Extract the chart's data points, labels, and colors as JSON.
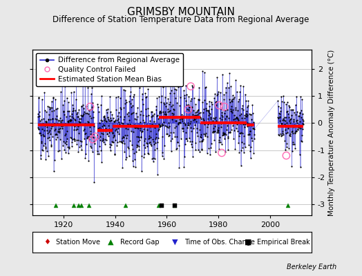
{
  "title": "GRIMSBY MOUNTAIN",
  "subtitle": "Difference of Station Temperature Data from Regional Average",
  "ylabel": "Monthly Temperature Anomaly Difference (°C)",
  "xlabel_ticks": [
    1920,
    1940,
    1960,
    1980,
    2000
  ],
  "ylim": [
    -3.4,
    2.7
  ],
  "xlim": [
    1908,
    2016
  ],
  "background_color": "#e8e8e8",
  "plot_bg_color": "#ffffff",
  "grid_color": "#c8c8c8",
  "seed": 42,
  "segments": [
    {
      "start": 1910,
      "end": 1931,
      "bias": -0.08,
      "spread": 0.65
    },
    {
      "start": 1933,
      "end": 1938,
      "bias": -0.28,
      "spread": 0.6
    },
    {
      "start": 1939,
      "end": 1956,
      "bias": -0.12,
      "spread": 0.72
    },
    {
      "start": 1957,
      "end": 1972,
      "bias": 0.18,
      "spread": 0.68
    },
    {
      "start": 1973,
      "end": 1990,
      "bias": 0.02,
      "spread": 0.72
    },
    {
      "start": 1991,
      "end": 1993,
      "bias": -0.08,
      "spread": 0.5
    },
    {
      "start": 2003,
      "end": 2012,
      "bias": -0.12,
      "spread": 0.52
    }
  ],
  "bias_segments": [
    {
      "start": 1910,
      "end": 1931,
      "bias": -0.08
    },
    {
      "start": 1933,
      "end": 1938,
      "bias": -0.28
    },
    {
      "start": 1939,
      "end": 1956,
      "bias": -0.12
    },
    {
      "start": 1957,
      "end": 1972,
      "bias": 0.22
    },
    {
      "start": 1973,
      "end": 1990,
      "bias": 0.0
    },
    {
      "start": 1991,
      "end": 1993,
      "bias": -0.08
    },
    {
      "start": 2003,
      "end": 2012,
      "bias": -0.12
    }
  ],
  "record_gaps": [
    1917,
    1924,
    1926,
    1927,
    1930,
    1944,
    1957,
    1963,
    2007
  ],
  "empirical_breaks": [
    1958,
    1963
  ],
  "qc_failed_approx": [
    [
      1930,
      0.6
    ],
    [
      1931,
      -0.6
    ],
    [
      1932,
      -0.5
    ],
    [
      1968,
      0.5
    ],
    [
      1969,
      1.35
    ],
    [
      1980,
      0.65
    ],
    [
      1981,
      -1.1
    ],
    [
      1982,
      0.6
    ],
    [
      2006,
      -1.2
    ]
  ],
  "line_color": "#2222cc",
  "dot_color": "#000000",
  "bias_color": "#ff0000",
  "qc_color": "#ff69b4",
  "gap_color": "#008000",
  "break_color": "#000000",
  "obs_color": "#2222cc",
  "move_color": "#cc0000",
  "title_fontsize": 11,
  "subtitle_fontsize": 8.5,
  "label_fontsize": 7.5,
  "tick_fontsize": 8,
  "legend_fontsize": 7.5,
  "watermark": "Berkeley Earth"
}
